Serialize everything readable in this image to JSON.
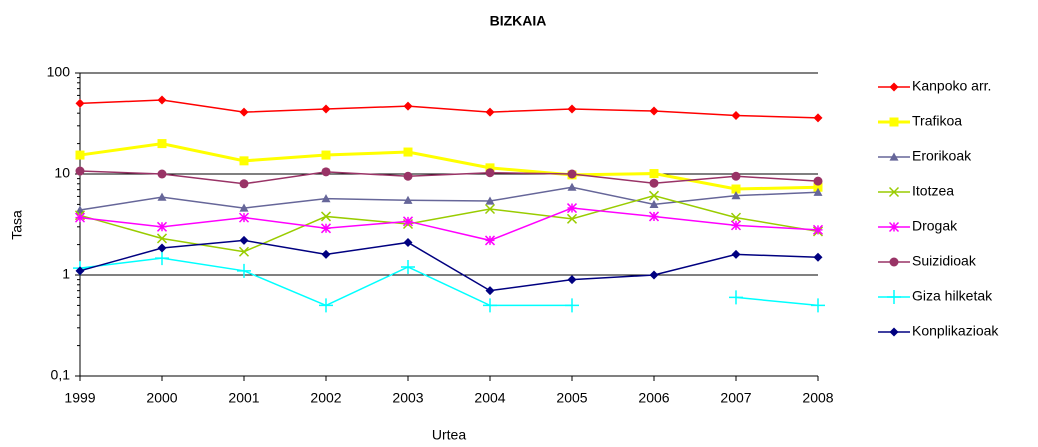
{
  "chart_data": {
    "type": "line",
    "title": "BIZKAIA",
    "x_label": "Urtea",
    "y_label": "Tasa",
    "x": [
      1999,
      2000,
      2001,
      2002,
      2003,
      2004,
      2005,
      2006,
      2007,
      2008
    ],
    "xlim": [
      1999,
      2008
    ],
    "xticks": [
      1999,
      2000,
      2001,
      2002,
      2003,
      2004,
      2005,
      2006,
      2007,
      2008
    ],
    "ylim": [
      0.1,
      100
    ],
    "yticks": [
      {
        "value": 0.1,
        "label": "0,1"
      },
      1,
      10,
      100
    ],
    "log_y": true,
    "grid": true,
    "legend": "right",
    "series": [
      {
        "name": "Kanpoko arr.",
        "color": "#ff0000",
        "marker": "diamond",
        "values": [
          50,
          54,
          41,
          44,
          47,
          41,
          44,
          42,
          38,
          36
        ]
      },
      {
        "name": "Trafikoa",
        "color": "#ffff00",
        "marker": "square",
        "values": [
          15.4,
          20,
          13.5,
          15.4,
          16.5,
          11.5,
          9.8,
          10.1,
          7.1,
          7.4
        ]
      },
      {
        "name": "Erorikoak",
        "color": "#666699",
        "marker": "triangle",
        "values": [
          4.4,
          5.9,
          4.6,
          5.7,
          5.5,
          5.4,
          7.4,
          5.0,
          6.1,
          6.6
        ]
      },
      {
        "name": "Itotzea",
        "color": "#99cc00",
        "marker": "x",
        "values": [
          3.9,
          2.3,
          1.7,
          3.8,
          3.2,
          4.5,
          3.6,
          6.1,
          3.7,
          2.7
        ]
      },
      {
        "name": "Drogak",
        "color": "#ff00ff",
        "marker": "asterisk",
        "values": [
          3.7,
          3.0,
          3.7,
          2.9,
          3.4,
          2.2,
          4.6,
          3.8,
          3.1,
          2.8
        ]
      },
      {
        "name": "Suizidioak",
        "color": "#993366",
        "marker": "circle",
        "values": [
          10.7,
          10,
          8.0,
          10.5,
          9.5,
          10.3,
          10,
          8.1,
          9.5,
          8.5
        ]
      },
      {
        "name": "Giza hilketak",
        "color": "#00ffff",
        "marker": "plus",
        "values": [
          1.17,
          1.47,
          1.1,
          0.5,
          1.2,
          0.5,
          0.5,
          null,
          0.6,
          0.5
        ]
      },
      {
        "name": "Konplikazioak",
        "color": "#000080",
        "marker": "diamond",
        "values": [
          1.1,
          1.85,
          2.2,
          1.6,
          2.1,
          0.7,
          0.9,
          1.0,
          1.6,
          1.5
        ]
      }
    ]
  }
}
